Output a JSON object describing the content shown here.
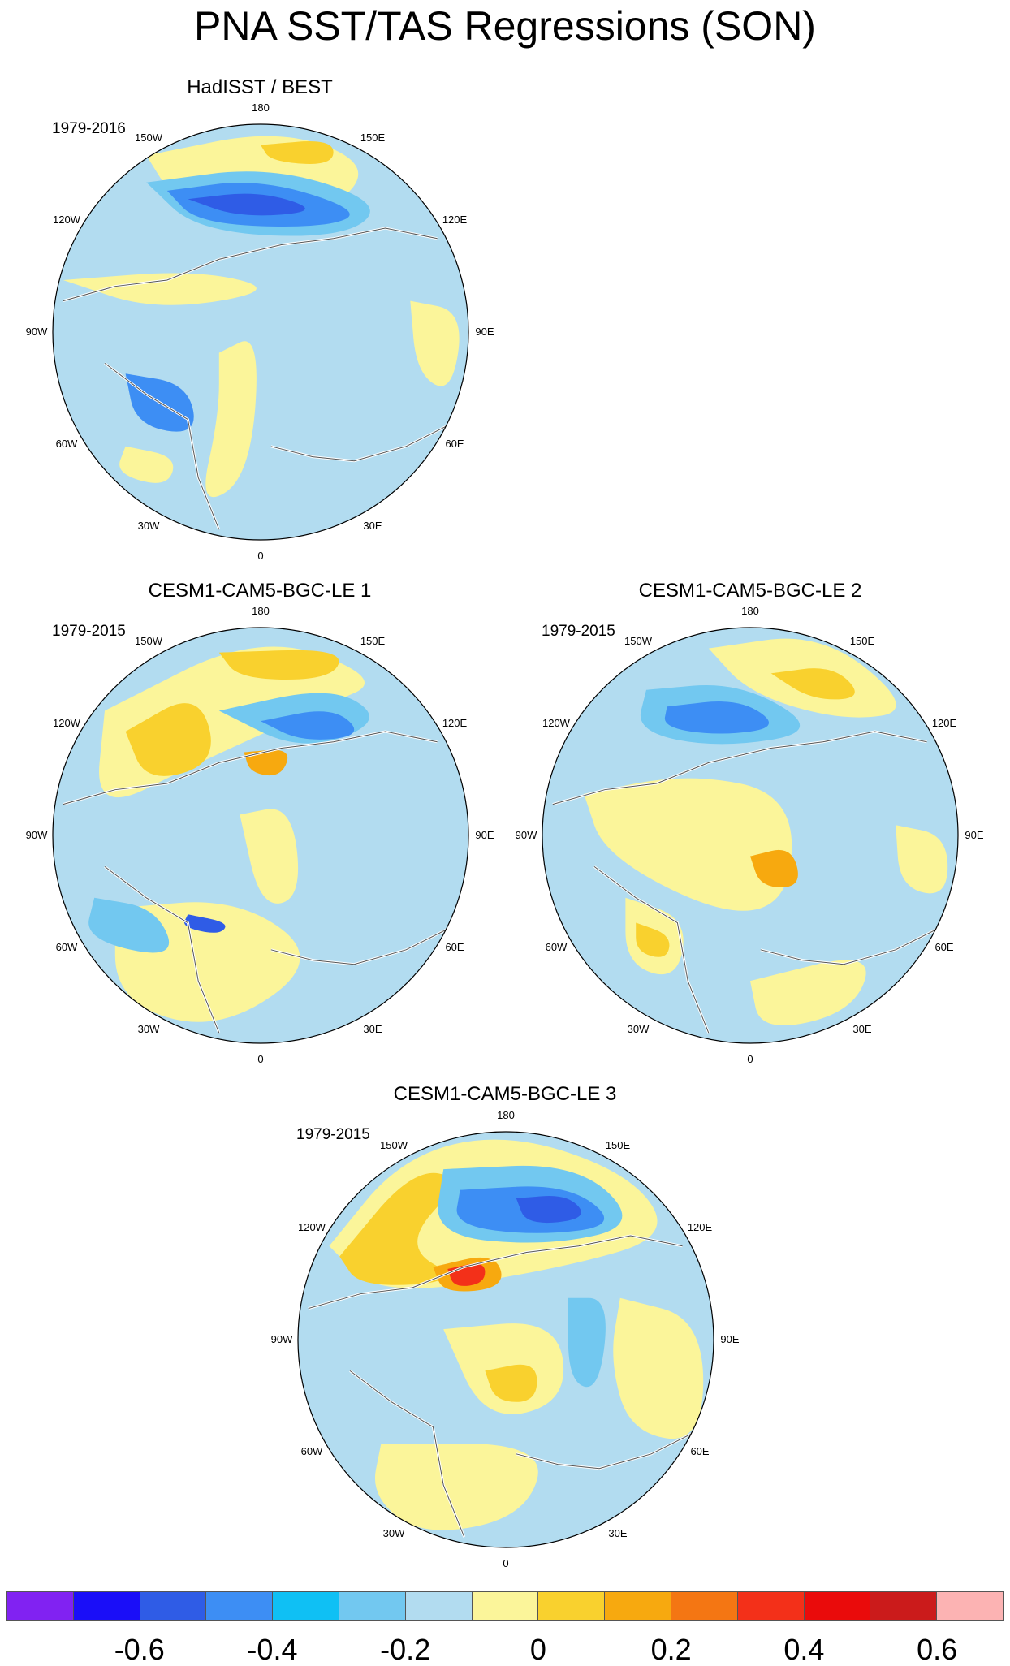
{
  "figure": {
    "title": "PNA SST/TAS Regressions (SON)"
  },
  "panels": [
    {
      "title": "HadISST / BEST",
      "period": "1979-2016"
    },
    {
      "title": "CESM1-CAM5-BGC-LE 1",
      "period": "1979-2015"
    },
    {
      "title": "CESM1-CAM5-BGC-LE 2",
      "period": "1979-2015"
    },
    {
      "title": "CESM1-CAM5-BGC-LE 3",
      "period": "1979-2015"
    }
  ],
  "longitude_labels": {
    "top": "180",
    "top_right": "150E",
    "right_upper": "120E",
    "right": "90E",
    "right_lower": "60E",
    "bottom_right": "30E",
    "bottom": "0",
    "bottom_left": "30W",
    "left_lower": "60W",
    "left": "90W",
    "left_upper": "120W",
    "top_left": "150W"
  },
  "colorbar": {
    "colors": [
      "#8122f2",
      "#1a0ef8",
      "#2f5ce6",
      "#3d8ef4",
      "#0fc0f4",
      "#72c8f0",
      "#b2dcf0",
      "#fbf59a",
      "#f9d12e",
      "#f7a90f",
      "#f47613",
      "#f33019",
      "#ea0b0b",
      "#cb1b1b",
      "#fcb3b3"
    ],
    "tick_labels": [
      "-0.6",
      "-0.4",
      "-0.2",
      "0",
      "0.2",
      "0.4",
      "0.6"
    ]
  },
  "palette": {
    "background": "#b2dcf0",
    "weak_positive": "#fbf59a",
    "positive": "#f9d12e",
    "moderate_positive": "#f7a90f",
    "strong_positive": "#f33019",
    "weak_negative": "#72c8f0",
    "negative": "#3d8ef4",
    "strong_negative": "#2f5ce6"
  }
}
